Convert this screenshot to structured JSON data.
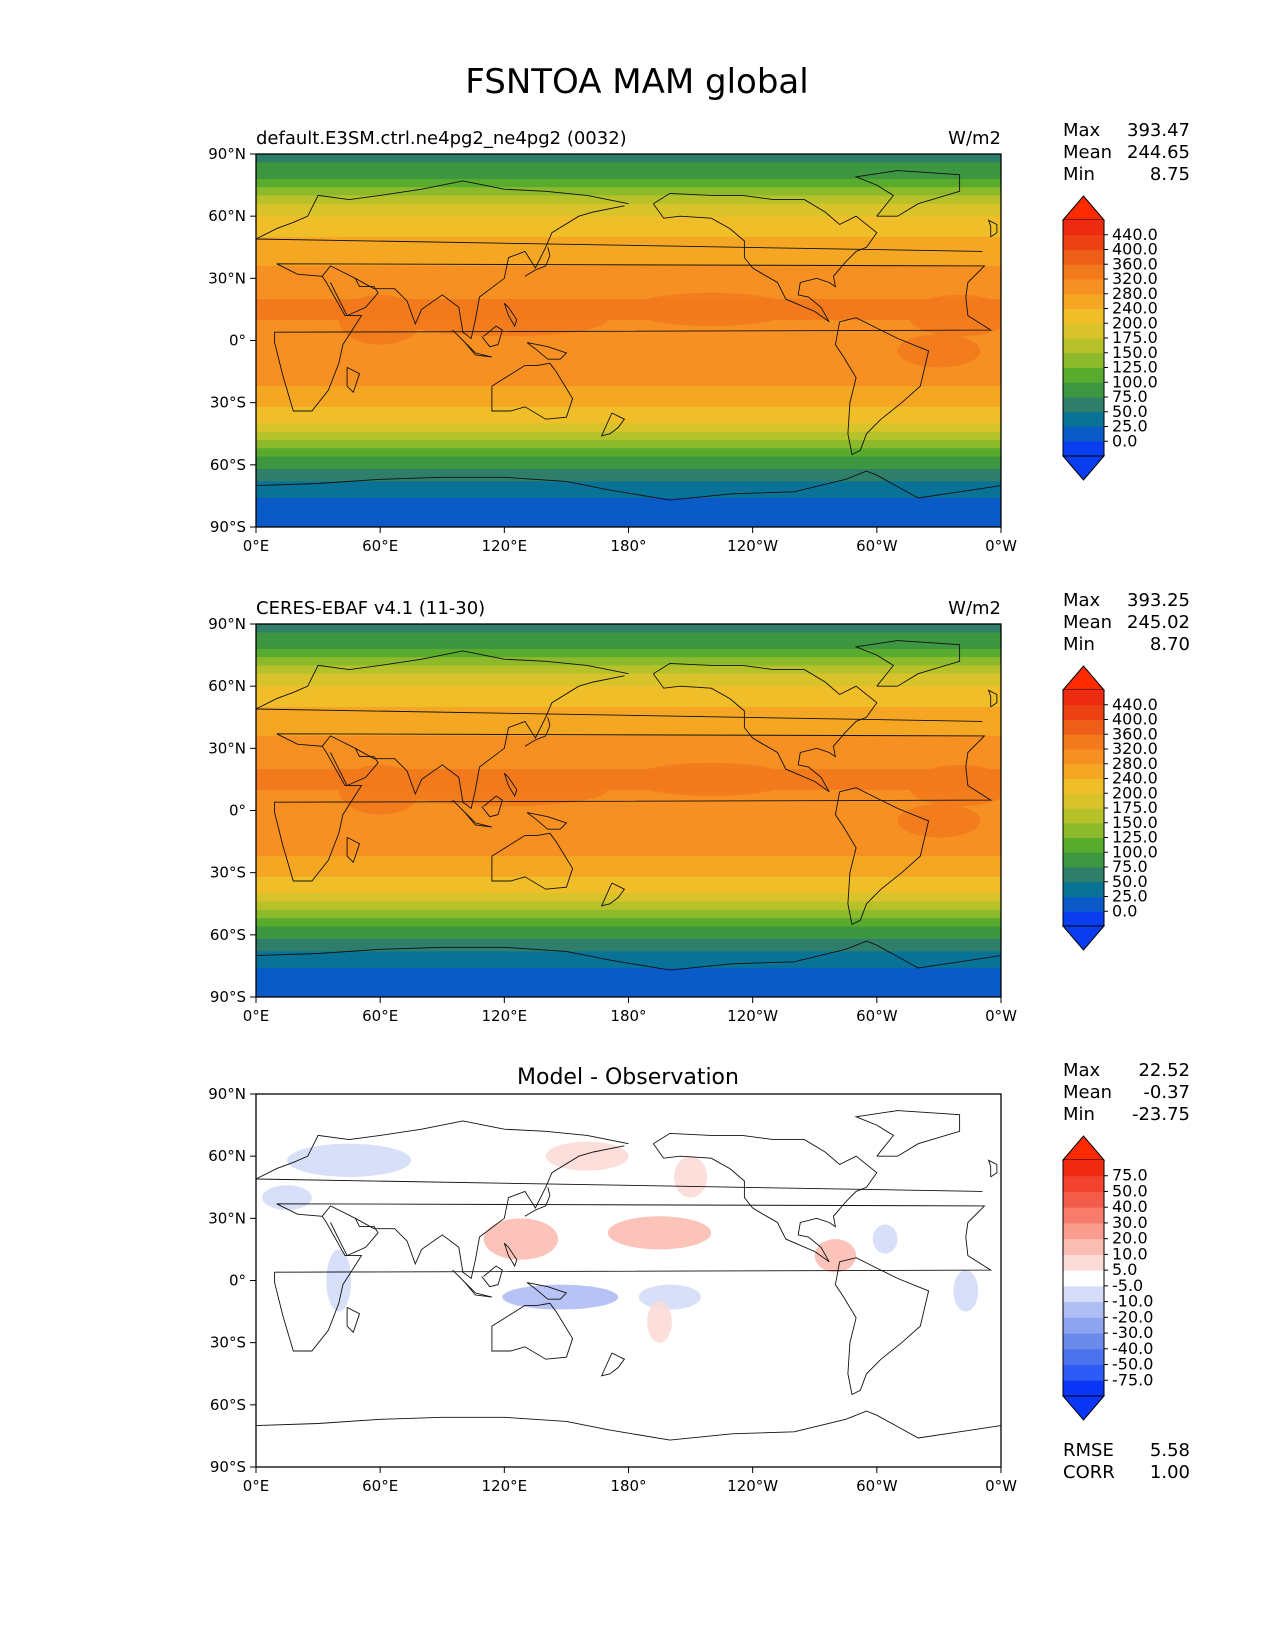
{
  "figure_title": "FSNTOA MAM global",
  "panels": [
    {
      "title_left": "default.E3SM.ctrl.ne4pg2_ne4pg2 (0032)",
      "title_right": "W/m2",
      "title_center": "",
      "stats": [
        [
          "Max",
          "393.47"
        ],
        [
          "Mean",
          "244.65"
        ],
        [
          "Min",
          "8.75"
        ]
      ],
      "extra_stats": []
    },
    {
      "title_left": "CERES-EBAF v4.1 (11-30)",
      "title_right": "W/m2",
      "title_center": "",
      "stats": [
        [
          "Max",
          "393.25"
        ],
        [
          "Mean",
          "245.02"
        ],
        [
          "Min",
          "8.70"
        ]
      ],
      "extra_stats": []
    },
    {
      "title_left": "",
      "title_right": "",
      "title_center": "Model - Observation",
      "stats": [
        [
          "Max",
          "22.52"
        ],
        [
          "Mean",
          "-0.37"
        ],
        [
          "Min",
          "-23.75"
        ]
      ],
      "extra_stats": [
        [
          "RMSE",
          "5.58"
        ],
        [
          "CORR",
          "1.00"
        ]
      ]
    }
  ],
  "colorbars": {
    "field": {
      "labels": [
        "440.0",
        "400.0",
        "360.0",
        "320.0",
        "280.0",
        "240.0",
        "200.0",
        "175.0",
        "150.0",
        "125.0",
        "100.0",
        "75.0",
        "50.0",
        "25.0",
        "0.0"
      ],
      "colors_bottom_to_top": [
        "#0a3cf0",
        "#0a5ac8",
        "#087396",
        "#2e7e6a",
        "#3d9640",
        "#58ab2c",
        "#8cba2c",
        "#b7c22a",
        "#d8c42a",
        "#f0be28",
        "#f5a723",
        "#f79022",
        "#f27a1c",
        "#ee5e18",
        "#ec4213",
        "#ec2b10"
      ],
      "over_color": "#ff2a00",
      "under_color": "#0a3cf0"
    },
    "diff": {
      "labels": [
        "75.0",
        "50.0",
        "40.0",
        "30.0",
        "20.0",
        "10.0",
        "5.0",
        "-5.0",
        "-10.0",
        "-20.0",
        "-30.0",
        "-40.0",
        "-50.0",
        "-75.0"
      ],
      "colors_bottom_to_top": [
        "#0a36f8",
        "#2c5cf5",
        "#4c73ee",
        "#6c8aec",
        "#8da4ee",
        "#aebdf3",
        "#d4dcf8",
        "#ffffff",
        "#fcdcd6",
        "#fbbcb2",
        "#fa9c8e",
        "#f77c6c",
        "#f45c4a",
        "#f2432e",
        "#f02a10"
      ],
      "over_color": "#ff2a00",
      "under_color": "#0a36f8"
    }
  },
  "axes": {
    "x_ticks": [
      "0°E",
      "60°E",
      "120°E",
      "180°",
      "120°W",
      "60°W",
      "0°W"
    ],
    "y_ticks": [
      "90°N",
      "60°N",
      "30°N",
      "0°",
      "30°S",
      "60°S",
      "90°S"
    ]
  },
  "chart_data": [
    {
      "type": "heatmap",
      "title": "default.E3SM.ctrl.ne4pg2_ne4pg2 (0032)",
      "units": "W/m2",
      "x_range_deg_east": [
        0,
        360
      ],
      "y_range_deg_lat": [
        -90,
        90
      ],
      "zonal_mean_profile": {
        "lat": [
          90,
          80,
          70,
          60,
          50,
          40,
          30,
          20,
          10,
          0,
          -10,
          -20,
          -30,
          -40,
          -50,
          -60,
          -70,
          -80,
          -90
        ],
        "value": [
          60,
          90,
          150,
          200,
          240,
          270,
          300,
          320,
          320,
          310,
          300,
          290,
          250,
          200,
          140,
          80,
          40,
          10,
          10
        ]
      },
      "stats": {
        "max": 393.47,
        "mean": 244.65,
        "min": 8.75
      }
    },
    {
      "type": "heatmap",
      "title": "CERES-EBAF v4.1 (11-30)",
      "units": "W/m2",
      "x_range_deg_east": [
        0,
        360
      ],
      "y_range_deg_lat": [
        -90,
        90
      ],
      "zonal_mean_profile": {
        "lat": [
          90,
          80,
          70,
          60,
          50,
          40,
          30,
          20,
          10,
          0,
          -10,
          -20,
          -30,
          -40,
          -50,
          -60,
          -70,
          -80,
          -90
        ],
        "value": [
          60,
          90,
          150,
          200,
          240,
          270,
          300,
          320,
          320,
          310,
          300,
          290,
          250,
          200,
          140,
          80,
          40,
          10,
          10
        ]
      },
      "stats": {
        "max": 393.25,
        "mean": 245.02,
        "min": 8.7
      }
    },
    {
      "type": "heatmap",
      "title": "Model - Observation",
      "x_range_deg_east": [
        0,
        360
      ],
      "y_range_deg_lat": [
        -90,
        90
      ],
      "anomalies": [
        {
          "lon": 45,
          "lat": 58,
          "rx": 30,
          "ry": 8,
          "value": -10
        },
        {
          "lon": 15,
          "lat": 40,
          "rx": 12,
          "ry": 6,
          "value": -10
        },
        {
          "lon": 40,
          "lat": 0,
          "rx": 6,
          "ry": 15,
          "value": -10
        },
        {
          "lon": 147,
          "lat": -8,
          "rx": 28,
          "ry": 6,
          "value": -20
        },
        {
          "lon": 200,
          "lat": -8,
          "rx": 15,
          "ry": 6,
          "value": -10
        },
        {
          "lon": 304,
          "lat": 20,
          "rx": 6,
          "ry": 7,
          "value": -10
        },
        {
          "lon": 343,
          "lat": -5,
          "rx": 6,
          "ry": 10,
          "value": -10
        },
        {
          "lon": 128,
          "lat": 20,
          "rx": 18,
          "ry": 10,
          "value": 10
        },
        {
          "lon": 195,
          "lat": 23,
          "rx": 25,
          "ry": 8,
          "value": 10
        },
        {
          "lon": 160,
          "lat": 60,
          "rx": 20,
          "ry": 7,
          "value": 5
        },
        {
          "lon": 210,
          "lat": 50,
          "rx": 8,
          "ry": 10,
          "value": 5
        },
        {
          "lon": 280,
          "lat": 12,
          "rx": 10,
          "ry": 8,
          "value": 10
        },
        {
          "lon": 195,
          "lat": -20,
          "rx": 6,
          "ry": 10,
          "value": 5
        }
      ],
      "stats": {
        "max": 22.52,
        "mean": -0.37,
        "min": -23.75,
        "rmse": 5.58,
        "corr": 1.0
      }
    }
  ]
}
